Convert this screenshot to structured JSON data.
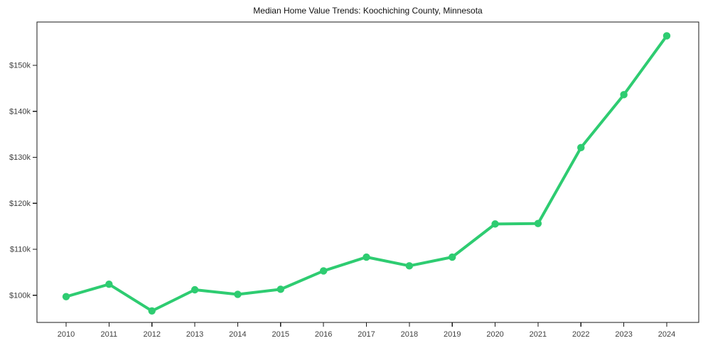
{
  "page": {
    "background": "#ffffff"
  },
  "chart_data": {
    "type": "line",
    "title": "Median Home Value Trends: Koochiching County, Minnesota",
    "x": [
      2010,
      2011,
      2012,
      2013,
      2014,
      2015,
      2016,
      2017,
      2018,
      2019,
      2020,
      2021,
      2022,
      2023,
      2024
    ],
    "xtick_labels": [
      "2010",
      "2011",
      "2012",
      "2013",
      "2014",
      "2015",
      "2016",
      "2017",
      "2018",
      "2019",
      "2020",
      "2021",
      "2022",
      "2023",
      "2024"
    ],
    "series": [
      {
        "name": "Median Home Value",
        "values": [
          99700,
          102400,
          96600,
          101200,
          100200,
          101300,
          105300,
          108300,
          106400,
          108300,
          115500,
          115600,
          132100,
          143600,
          156400
        ],
        "color": "#2ecc71",
        "marker": "circle"
      }
    ],
    "xlabel": "",
    "ylabel": "",
    "ylim": [
      94100,
      159400
    ],
    "yticks": [
      100000,
      110000,
      120000,
      130000,
      140000,
      150000
    ],
    "ytick_labels": [
      "$100k",
      "$110k",
      "$120k",
      "$130k",
      "$140k",
      "$150k"
    ],
    "grid": false,
    "legend_position": "none",
    "axis_color": "#1a1a1a",
    "tick_label_color": "#3f3f3f",
    "title_color": "#111111"
  }
}
